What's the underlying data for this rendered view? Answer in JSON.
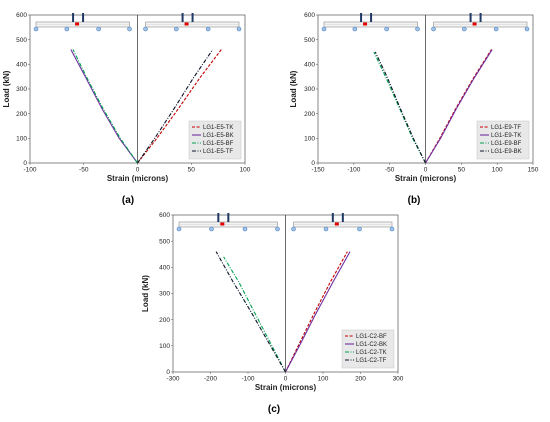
{
  "colors": {
    "red": "#c00000",
    "purple": "#7030a0",
    "green": "#00a050",
    "black": "#0a1428",
    "beam_blue": "#4f81bd",
    "beam_dark": "#1f3864",
    "gauge_red": "#e00000"
  },
  "chart_data": [
    {
      "type": "line",
      "panel_label": "(a)",
      "xlabel": "Strain (microns)",
      "ylabel": "Load (kN)",
      "xlim": [
        -100,
        100
      ],
      "ylim": [
        0,
        600
      ],
      "xticks": [
        -100,
        -50,
        0,
        50,
        100
      ],
      "yticks": [
        0,
        100,
        200,
        300,
        400,
        500,
        600
      ],
      "legend_position": "bottom-right",
      "series": [
        {
          "name": "LG1-E5-TK",
          "style": "dashed",
          "color": "red",
          "x": [
            0,
            18,
            38,
            58,
            78
          ],
          "y": [
            0,
            100,
            220,
            345,
            460
          ]
        },
        {
          "name": "LG1-E5-BK",
          "style": "solid",
          "color": "purple",
          "x": [
            0,
            -17,
            -33,
            -48,
            -62
          ],
          "y": [
            0,
            100,
            220,
            345,
            460
          ]
        },
        {
          "name": "LG1-E5-BF",
          "style": "dashdot",
          "color": "green",
          "x": [
            0,
            -16,
            -32,
            -47,
            -60
          ],
          "y": [
            0,
            100,
            220,
            345,
            460
          ]
        },
        {
          "name": "LG1-E5-TF",
          "style": "dashdot",
          "color": "black",
          "x": [
            0,
            16,
            34,
            52,
            70
          ],
          "y": [
            0,
            100,
            220,
            345,
            460
          ]
        }
      ]
    },
    {
      "type": "line",
      "panel_label": "(b)",
      "xlabel": "Strain (microns)",
      "ylabel": "Load (kN)",
      "xlim": [
        -150,
        150
      ],
      "ylim": [
        0,
        600
      ],
      "xticks": [
        -150,
        -100,
        -50,
        0,
        50,
        100,
        150
      ],
      "yticks": [
        0,
        100,
        200,
        300,
        400,
        500,
        600
      ],
      "legend_position": "bottom-right",
      "series": [
        {
          "name": "LG1-E9-TF",
          "style": "dashed",
          "color": "red",
          "x": [
            0,
            20,
            42,
            67,
            92
          ],
          "y": [
            0,
            100,
            220,
            345,
            460
          ]
        },
        {
          "name": "LG1-E9-TK",
          "style": "solid",
          "color": "purple",
          "x": [
            0,
            21,
            43,
            68,
            93
          ],
          "y": [
            0,
            100,
            220,
            345,
            460
          ]
        },
        {
          "name": "LG1-E9-BF",
          "style": "dashdot",
          "color": "green",
          "x": [
            0,
            -18,
            -36,
            -55,
            -72
          ],
          "y": [
            0,
            100,
            220,
            345,
            450
          ]
        },
        {
          "name": "LG1-E9-BK",
          "style": "dashdot",
          "color": "black",
          "x": [
            0,
            -17,
            -35,
            -53,
            -70
          ],
          "y": [
            0,
            100,
            220,
            345,
            450
          ]
        }
      ]
    },
    {
      "type": "line",
      "panel_label": "(c)",
      "xlabel": "Strain (microns)",
      "ylabel": "Load (kN)",
      "xlim": [
        -300,
        300
      ],
      "ylim": [
        0,
        600
      ],
      "xticks": [
        -300,
        -200,
        -100,
        0,
        100,
        200,
        300
      ],
      "yticks": [
        0,
        100,
        200,
        300,
        400,
        500,
        600
      ],
      "legend_position": "bottom-right",
      "series": [
        {
          "name": "LG1-C2-BF",
          "style": "dashed",
          "color": "red",
          "x": [
            0,
            34,
            75,
            120,
            165
          ],
          "y": [
            0,
            100,
            220,
            345,
            460
          ]
        },
        {
          "name": "LG1-C2-BK",
          "style": "solid",
          "color": "purple",
          "x": [
            0,
            37,
            80,
            127,
            172
          ],
          "y": [
            0,
            100,
            220,
            345,
            460
          ]
        },
        {
          "name": "LG1-C2-TK",
          "style": "dashdot",
          "color": "green",
          "x": [
            0,
            -36,
            -80,
            -125,
            -165
          ],
          "y": [
            0,
            100,
            220,
            345,
            440
          ]
        },
        {
          "name": "LG1-C2-TF",
          "style": "dashdot",
          "color": "black",
          "x": [
            0,
            -40,
            -88,
            -140,
            -185
          ],
          "y": [
            0,
            100,
            220,
            345,
            460
          ]
        }
      ]
    }
  ]
}
